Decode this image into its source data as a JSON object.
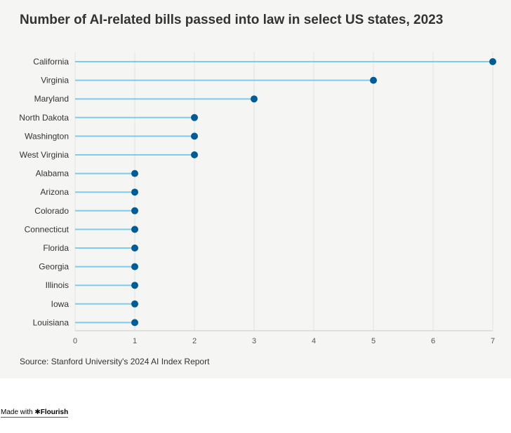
{
  "chart_data": {
    "type": "lollipop",
    "title": "Number of AI-related bills passed into law in select US states, 2023",
    "categories": [
      "California",
      "Virginia",
      "Maryland",
      "North Dakota",
      "Washington",
      "West Virginia",
      "Alabama",
      "Arizona",
      "Colorado",
      "Connecticut",
      "Florida",
      "Georgia",
      "Illinois",
      "Iowa",
      "Louisiana"
    ],
    "values": [
      7,
      5,
      3,
      2,
      2,
      2,
      1,
      1,
      1,
      1,
      1,
      1,
      1,
      1,
      1
    ],
    "x_ticks": [
      0,
      1,
      2,
      3,
      4,
      5,
      6,
      7
    ],
    "xlim": [
      0,
      7
    ],
    "grid": "vertical",
    "colors": {
      "stem": "#7ecbeb",
      "dot": "#005b96",
      "grid": "#e2e2e2",
      "axis": "#cccccc"
    }
  },
  "source": "Source: Stanford University's 2024 AI Index Report",
  "footer": {
    "made_with": "Made with",
    "brand": "Flourish",
    "brand_icon": "asterisk-icon"
  }
}
